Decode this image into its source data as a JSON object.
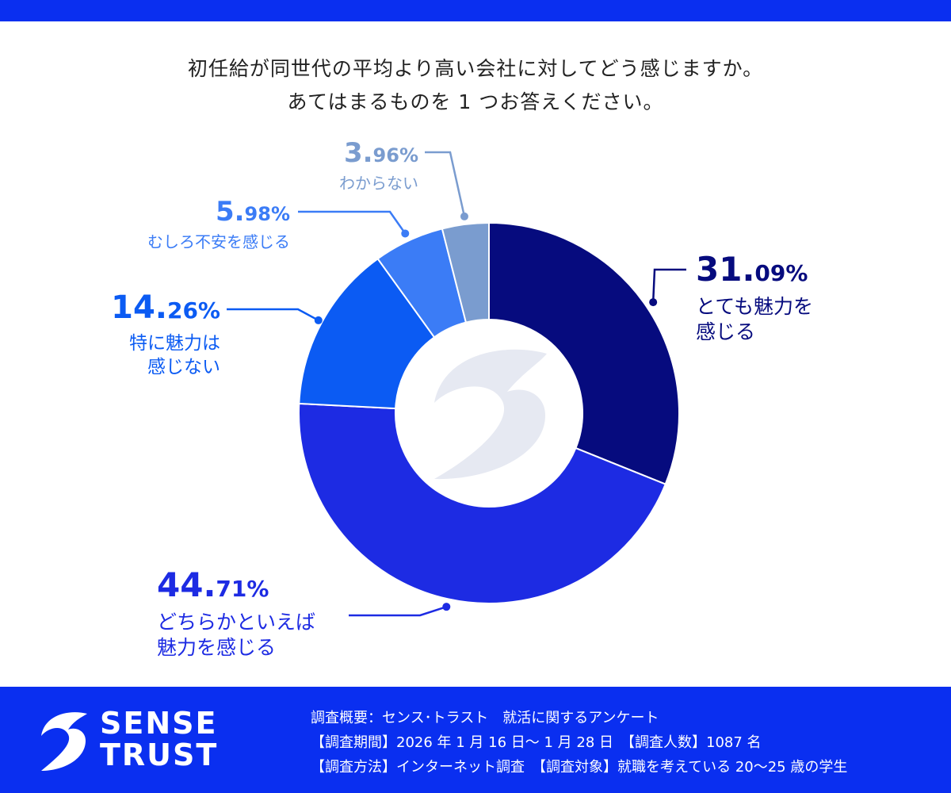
{
  "question": {
    "line1": "初任給が同世代の平均より高い会社に対してどう感じますか。",
    "line2": "あてはまるものを 1 つお答えください。"
  },
  "chart_data": {
    "type": "pie",
    "donut": true,
    "start_angle_deg": 0,
    "direction": "clockwise",
    "slices": [
      {
        "pct_int": "31.",
        "pct_dec": "09%",
        "value": 31.09,
        "label": [
          "とても魅力を",
          "感じる"
        ],
        "color": "#060b7e"
      },
      {
        "pct_int": "44.",
        "pct_dec": "71%",
        "value": 44.71,
        "label": [
          "どちらかといえば",
          "魅力を感じる"
        ],
        "color": "#1d2be3"
      },
      {
        "pct_int": "14.",
        "pct_dec": "26%",
        "value": 14.26,
        "label": [
          "特に魅力は",
          "感じない"
        ],
        "color": "#0b5bf3"
      },
      {
        "pct_int": "5.",
        "pct_dec": "98%",
        "value": 5.98,
        "label": [
          "むしろ不安を感じる"
        ],
        "color": "#3b7cf6"
      },
      {
        "pct_int": "3.",
        "pct_dec": "96%",
        "value": 3.96,
        "label": [
          "わからない"
        ],
        "color": "#7a9ccf"
      }
    ]
  },
  "footer": {
    "brand_line1": "SENSE",
    "brand_line2": "TRUST",
    "survey_line1": "調査概要：センス･トラスト　就活に関するアンケート",
    "survey_line2": "【調査期間】2026 年 1 月 16 日～ 1 月 28 日　【調査人数】1087 名",
    "survey_line3": "【調査方法】インターネット調査　【調査対象】就職を考えている 20～25 歳の学生"
  }
}
